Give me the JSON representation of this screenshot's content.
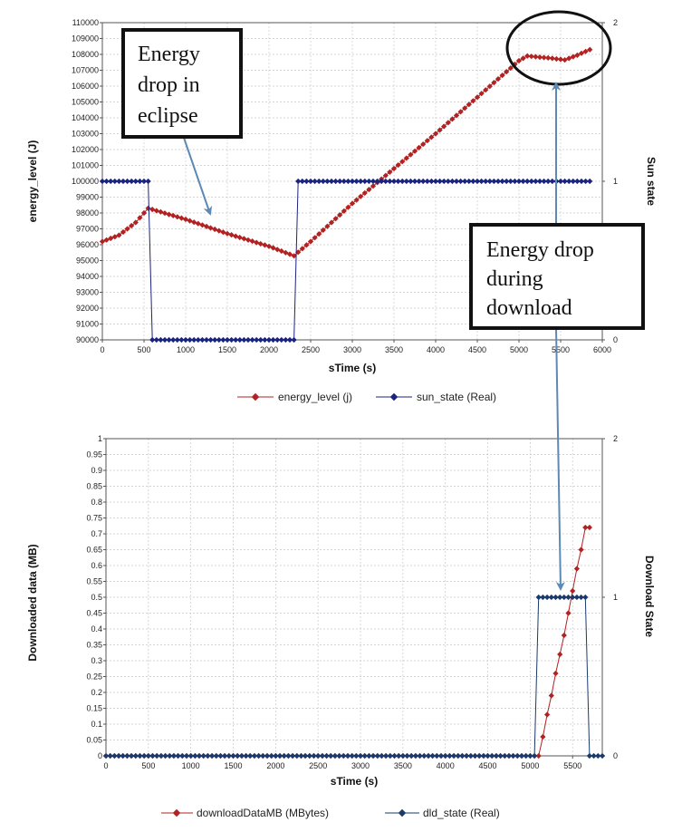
{
  "colors": {
    "energy": "#b22222",
    "sun": "#1a237e",
    "download": "#b22222",
    "dld": "#1a3a6b",
    "grid": "#c8c8c8",
    "annotation_arrow": "#5b8ab5",
    "border": "#555555"
  },
  "annotations": {
    "eclipse_text": [
      "Energy",
      "drop in",
      "eclipse"
    ],
    "download_text": [
      "Energy drop",
      "during",
      "download"
    ]
  },
  "chart_data": [
    {
      "type": "line",
      "xlabel": "sTime (s)",
      "ylabel": "energy_level (J)",
      "y2label": "Sun state",
      "xlim": [
        0,
        6000
      ],
      "x_ticks": [
        "0",
        "500",
        "1000",
        "1500",
        "2000",
        "2500",
        "3000",
        "3500",
        "4000",
        "4500",
        "5000",
        "5500",
        "6000"
      ],
      "ylim": [
        90000,
        110000
      ],
      "y_ticks": [
        "90000",
        "91000",
        "92000",
        "93000",
        "94000",
        "95000",
        "96000",
        "97000",
        "98000",
        "99000",
        "100000",
        "101000",
        "102000",
        "103000",
        "104000",
        "105000",
        "106000",
        "107000",
        "108000",
        "109000",
        "110000"
      ],
      "y2lim": [
        0,
        2
      ],
      "y2_ticks": [
        "0",
        "1",
        "2"
      ],
      "grid": true,
      "legend_position": "bottom",
      "legend": [
        "energy_level (j)",
        "sun_state (Real)"
      ],
      "series": [
        {
          "name": "energy_level (j)",
          "axis": "left",
          "points": [
            [
              0,
              96200
            ],
            [
              200,
              96600
            ],
            [
              400,
              97400
            ],
            [
              550,
              98300
            ],
            [
              1000,
              97600
            ],
            [
              1500,
              96700
            ],
            [
              2000,
              95900
            ],
            [
              2300,
              95300
            ],
            [
              2500,
              96200
            ],
            [
              3000,
              98600
            ],
            [
              3500,
              100800
            ],
            [
              4000,
              103000
            ],
            [
              4500,
              105300
            ],
            [
              5000,
              107600
            ],
            [
              5100,
              107900
            ],
            [
              5400,
              107750
            ],
            [
              5550,
              107650
            ],
            [
              5700,
              107950
            ],
            [
              5850,
              108300
            ]
          ],
          "step": 50
        },
        {
          "name": "sun_state (Real)",
          "axis": "right",
          "points": [
            [
              0,
              1
            ],
            [
              550,
              1
            ],
            [
              600,
              0
            ],
            [
              2300,
              0
            ],
            [
              2350,
              1
            ],
            [
              5850,
              1
            ]
          ],
          "step": 50
        }
      ]
    },
    {
      "type": "line",
      "xlabel": "sTime (s)",
      "ylabel": "Downloaded data (MB)",
      "y2label": "Download State",
      "xlim": [
        0,
        5850
      ],
      "x_ticks": [
        "0",
        "500",
        "1000",
        "1500",
        "2000",
        "2500",
        "3000",
        "3500",
        "4000",
        "4500",
        "5000",
        "5500"
      ],
      "ylim": [
        0,
        1
      ],
      "y_ticks": [
        "0",
        "0.05",
        "0.1",
        "0.15",
        "0.2",
        "0.25",
        "0.3",
        "0.35",
        "0.4",
        "0.45",
        "0.5",
        "0.55",
        "0.6",
        "0.65",
        "0.7",
        "0.75",
        "0.8",
        "0.85",
        "0.9",
        "0.95",
        "1"
      ],
      "y2lim": [
        0,
        2
      ],
      "y2_ticks": [
        "0",
        "1",
        "2"
      ],
      "grid": true,
      "legend_position": "bottom",
      "legend": [
        "downloadDataMB (MBytes)",
        "dld_state (Real)"
      ],
      "series": [
        {
          "name": "downloadDataMB (MBytes)",
          "axis": "left",
          "points": [
            [
              0,
              0
            ],
            [
              5100,
              0
            ],
            [
              5150,
              0.06
            ],
            [
              5200,
              0.13
            ],
            [
              5250,
              0.19
            ],
            [
              5300,
              0.26
            ],
            [
              5350,
              0.32
            ],
            [
              5400,
              0.38
            ],
            [
              5450,
              0.45
            ],
            [
              5500,
              0.52
            ],
            [
              5550,
              0.59
            ],
            [
              5600,
              0.65
            ],
            [
              5650,
              0.72
            ],
            [
              5700,
              0.72
            ]
          ],
          "step": 50
        },
        {
          "name": "dld_state (Real)",
          "axis": "right",
          "points": [
            [
              0,
              0
            ],
            [
              5050,
              0
            ],
            [
              5100,
              1
            ],
            [
              5650,
              1
            ],
            [
              5700,
              0
            ],
            [
              5850,
              0
            ]
          ],
          "step": 50
        }
      ]
    }
  ]
}
